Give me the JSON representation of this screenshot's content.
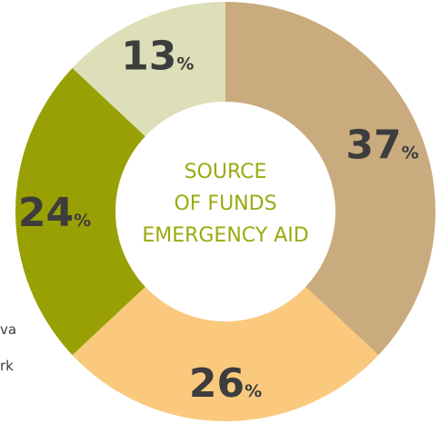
{
  "chart_data": {
    "type": "pie",
    "title_lines": [
      "SOURCE",
      "OF FUNDS",
      "EMERGENCY AID"
    ],
    "categories": [
      "",
      "",
      "",
      ""
    ],
    "values": [
      37,
      26,
      24,
      13
    ],
    "value_labels": [
      "37",
      "26",
      "24",
      "13"
    ],
    "unit": "%",
    "colors": [
      "#c9ab7e",
      "#fac97e",
      "#99a003",
      "#dddfb8"
    ],
    "title_color": "#9aaa10"
  },
  "side_texts": [
    "va",
    "rk"
  ]
}
